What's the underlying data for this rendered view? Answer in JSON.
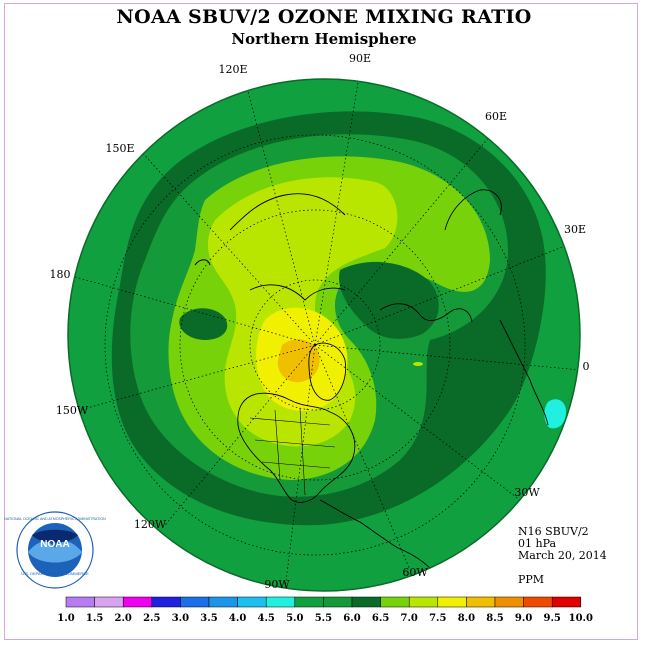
{
  "header": {
    "title": "NOAA SBUV/2 OZONE MIXING RATIO",
    "subtitle": "Northern Hemisphere"
  },
  "map": {
    "projection": "north-polar-stereographic",
    "longitude_labels": {
      "lon_90E": "90E",
      "lon_60E": "60E",
      "lon_30E": "30E",
      "lon_0": "0",
      "lon_30W": "30W",
      "lon_60W": "60W",
      "lon_90W": "90W",
      "lon_120W": "120W",
      "lon_150W": "150W",
      "lon_180": "180",
      "lon_150E": "150E",
      "lon_120E": "120E"
    },
    "ozone_max_region": "Arctic (orange, 7.5-8.0 ppm)",
    "ozone_min_region": "North Atlantic edge (cyan, 4.5-5.0 ppm)"
  },
  "info": {
    "instrument": "N16 SBUV/2",
    "pressure": "01 hPa",
    "date": "March 20, 2014",
    "units": "PPM"
  },
  "logo": {
    "text": "NOAA",
    "ring_text_top": "NATIONAL OCEANIC AND ATMOSPHERIC ADMINISTRATION",
    "ring_text_bottom": "U.S. DEPARTMENT OF COMMERCE"
  },
  "colorbar": {
    "ticks": [
      "1.0",
      "1.5",
      "2.0",
      "2.5",
      "3.0",
      "3.5",
      "4.0",
      "4.5",
      "5.0",
      "5.5",
      "6.0",
      "6.5",
      "7.0",
      "7.5",
      "8.0",
      "8.5",
      "9.0",
      "9.5",
      "10.0"
    ],
    "colors": [
      "#b77cf2",
      "#d8a3f0",
      "#f000f0",
      "#2020e0",
      "#1a70e8",
      "#1a96e8",
      "#1cc0f0",
      "#20f0e0",
      "#10a040",
      "#149a38",
      "#0a6b28",
      "#78d20a",
      "#b8e600",
      "#f0f000",
      "#f0c000",
      "#f09000",
      "#f04a00",
      "#e00000",
      "#8c5a3c"
    ]
  }
}
